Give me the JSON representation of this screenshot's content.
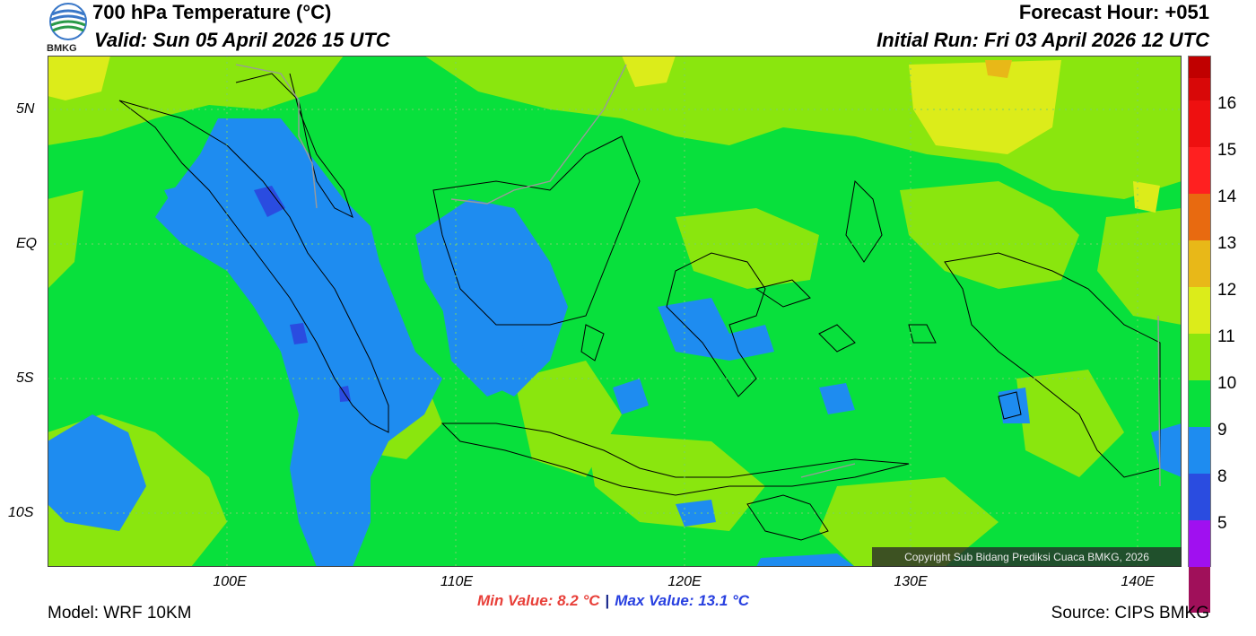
{
  "logo": {
    "text": "BMKG",
    "icon": "bmkg-logo-icon"
  },
  "header": {
    "title": "700 hPa Temperature (°C)",
    "valid": "Valid: Sun 05 April 2026 15 UTC",
    "forecast_hour": "Forecast Hour: +051",
    "initial_run": "Initial Run: Fri 03 April 2026 12 UTC"
  },
  "map": {
    "lat_labels": [
      "5N",
      "EQ",
      "5S",
      "10S"
    ],
    "lon_labels": [
      "100E",
      "110E",
      "120E",
      "130E",
      "140E"
    ],
    "copyright": "Copyright Sub Bidang Prediksi Cuaca BMKG, 2026"
  },
  "colorbar": {
    "labels": [
      "16",
      "15",
      "14",
      "13",
      "12",
      "11",
      "10",
      "9",
      "8",
      "5"
    ],
    "colors": [
      "#c00000",
      "#ee1010",
      "#ff2020",
      "#e86a10",
      "#e8b818",
      "#dcec1a",
      "#8ae60e",
      "#08e03c",
      "#1e8cf0",
      "#2a4ce0",
      "#a010f0",
      "#a0105a"
    ]
  },
  "footer": {
    "model": "Model: WRF 10KM",
    "source": "Source: CIPS BMKG",
    "min_value": "Min Value: 8.2 °C",
    "separator": "|",
    "max_value": "Max Value: 13.1 °C"
  }
}
